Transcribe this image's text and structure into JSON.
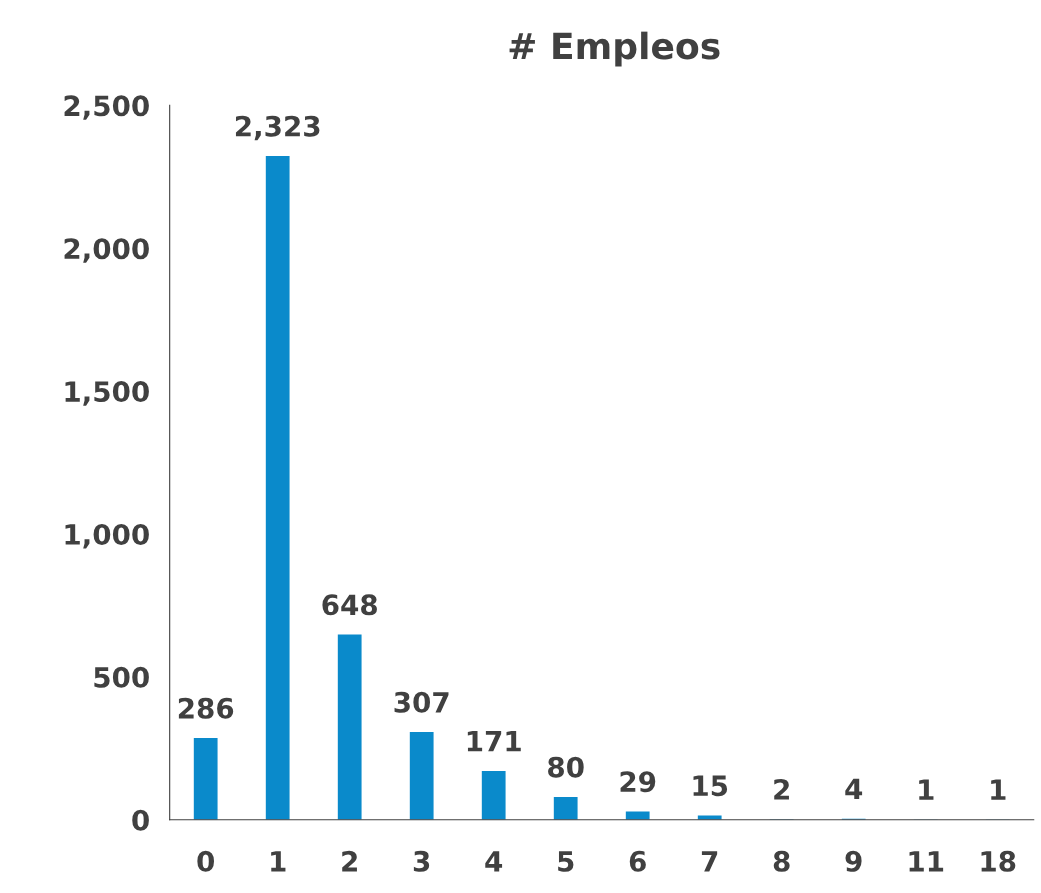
{
  "chart_data": {
    "type": "bar",
    "title": "# Empleos",
    "categories": [
      "0",
      "1",
      "2",
      "3",
      "4",
      "5",
      "6",
      "7",
      "8",
      "9",
      "11",
      "18"
    ],
    "values": [
      286,
      2323,
      648,
      307,
      171,
      80,
      29,
      15,
      2,
      4,
      1,
      1
    ],
    "value_labels": [
      "286",
      "2,323",
      "648",
      "307",
      "171",
      "80",
      "29",
      "15",
      "2",
      "4",
      "1",
      "1"
    ],
    "color": "#0a8acb",
    "ylim": [
      0,
      2500
    ],
    "yticks": [
      0,
      500,
      {
        "value": 1000,
        "label": "1,000"
      },
      {
        "value": 1500,
        "label": "1,500"
      },
      {
        "value": 2000,
        "label": "2,000"
      },
      {
        "value": 2500,
        "label": "2,500"
      }
    ],
    "grid": false,
    "legend": false
  }
}
